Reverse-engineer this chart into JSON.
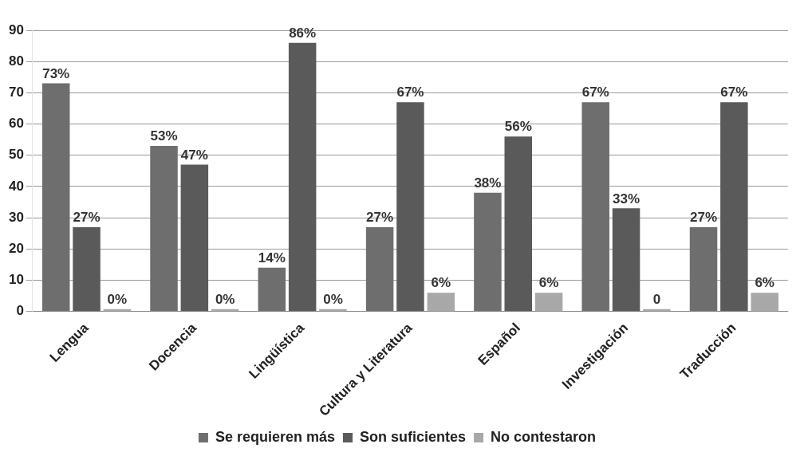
{
  "chart_data": {
    "type": "bar",
    "categories": [
      "Lengua",
      "Docencia",
      "Lingüística",
      "Cultura y Literatura",
      "Español",
      "Investigación",
      "Traducción"
    ],
    "series": [
      {
        "name": "Se requieren más",
        "color": "#6e6e6e",
        "values": [
          73,
          53,
          14,
          27,
          38,
          67,
          27
        ],
        "value_labels": [
          "73%",
          "53%",
          "14%",
          "27%",
          "38%",
          "67%",
          "27%"
        ]
      },
      {
        "name": "Son suficientes",
        "color": "#5a5a5a",
        "values": [
          27,
          47,
          86,
          67,
          56,
          33,
          67
        ],
        "value_labels": [
          "27%",
          "47%",
          "86%",
          "67%",
          "56%",
          "33%",
          "67%"
        ]
      },
      {
        "name": "No contestaron",
        "color": "#a8a8a8",
        "values": [
          0,
          0,
          0,
          6,
          6,
          0,
          6
        ],
        "value_labels": [
          "0%",
          "0%",
          "0%",
          "6%",
          "6%",
          "0",
          "6%"
        ]
      }
    ],
    "ylim": [
      0,
      90
    ],
    "yticks": [
      0,
      10,
      20,
      30,
      40,
      50,
      60,
      70,
      80,
      90
    ],
    "grid": "y",
    "legend": "bottom"
  }
}
